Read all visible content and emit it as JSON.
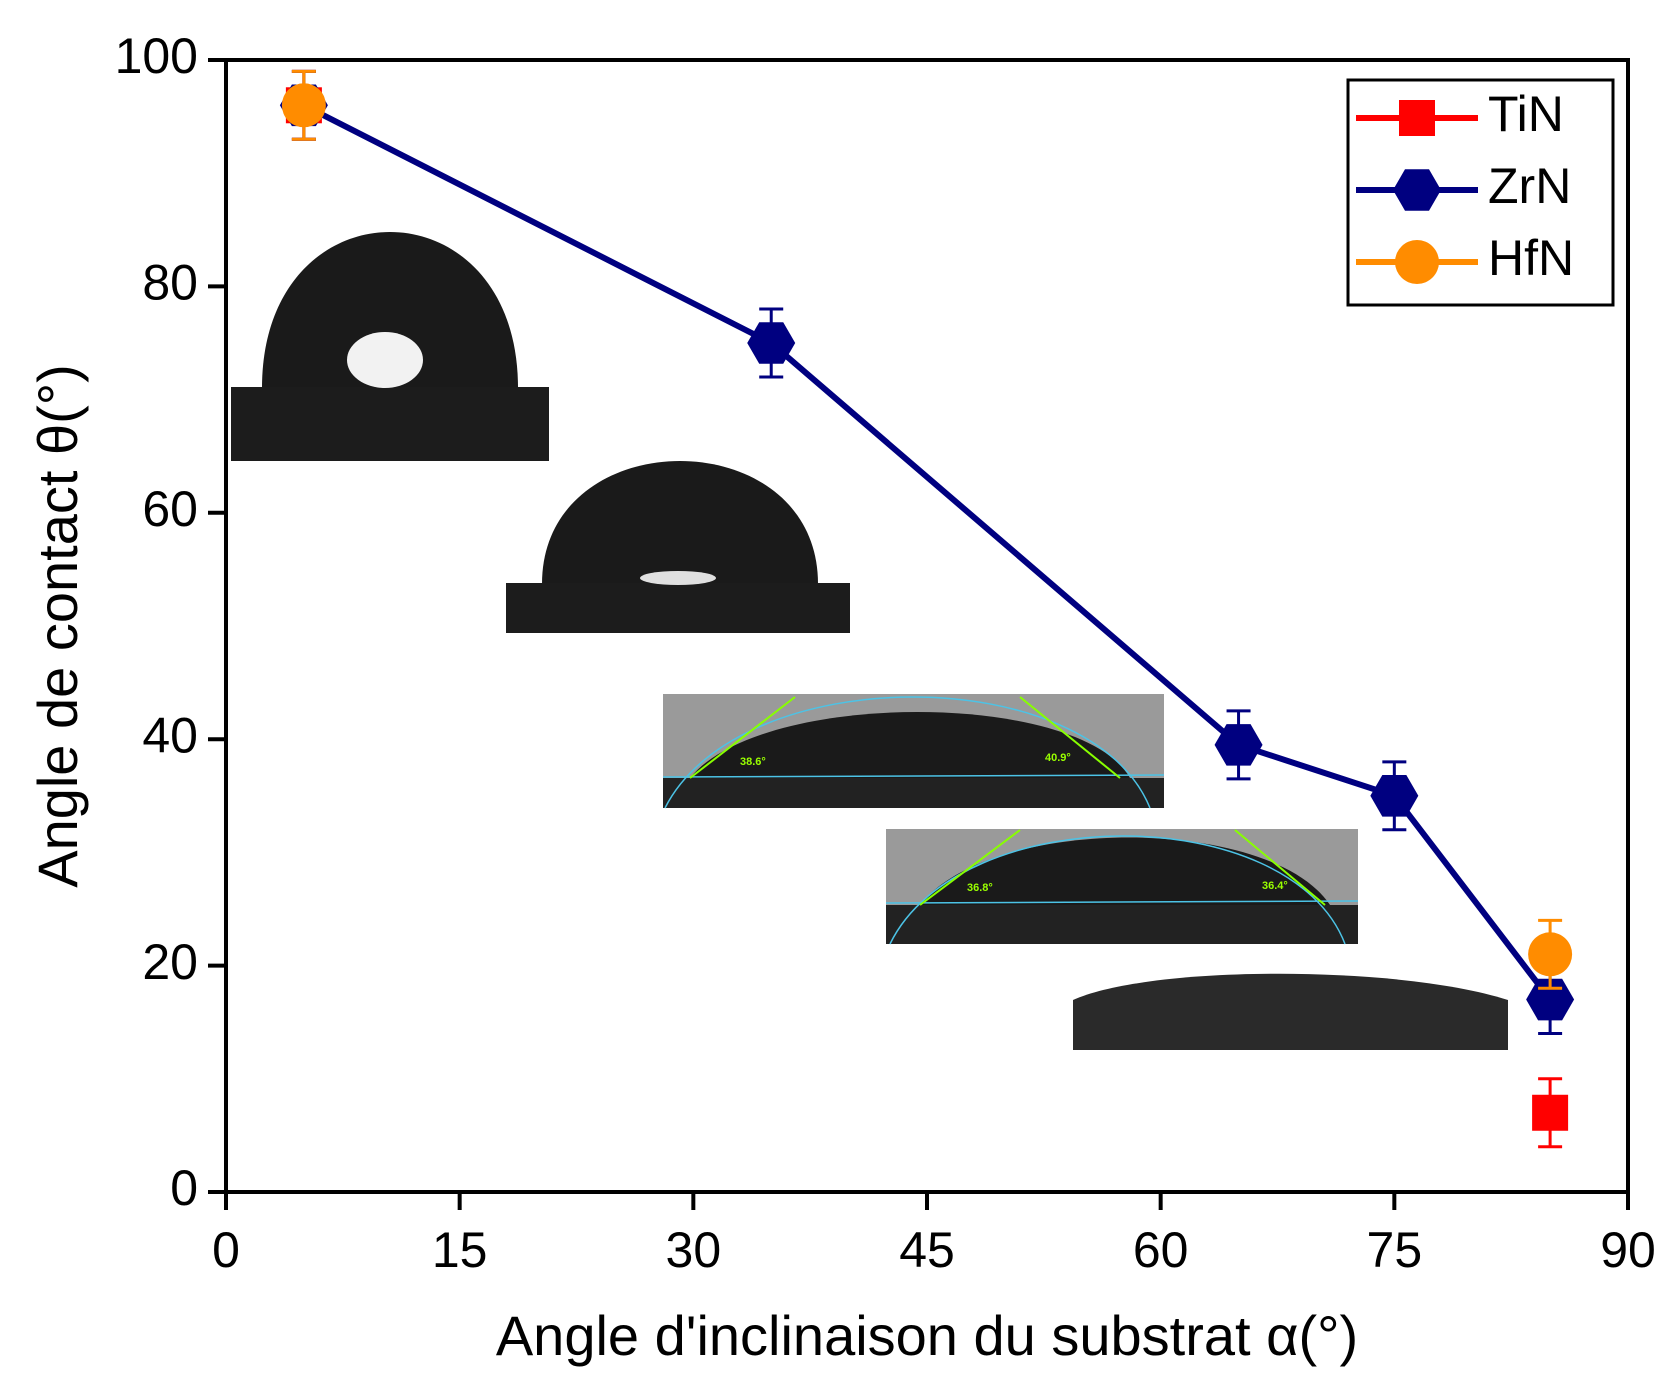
{
  "chart_data": {
    "type": "line",
    "x_label": "Angle d'inclinaison du substrat α(°)",
    "y_label": "Angle de contact θ(°)",
    "x": [
      5,
      35,
      65,
      75,
      85
    ],
    "series": [
      {
        "name": "TiN",
        "color": "#ff0000",
        "marker": "square",
        "values": [
          96,
          null,
          null,
          null,
          7
        ],
        "errors": [
          3,
          null,
          null,
          null,
          3
        ]
      },
      {
        "name": "ZrN",
        "color": "#000080",
        "marker": "hexagon",
        "values": [
          96,
          75,
          39.5,
          35,
          17
        ],
        "errors": [
          3,
          3,
          3,
          3,
          3
        ]
      },
      {
        "name": "HfN",
        "color": "#ff8c00",
        "marker": "circle",
        "values": [
          96,
          null,
          null,
          null,
          21
        ],
        "errors": [
          3,
          null,
          null,
          null,
          3
        ]
      }
    ],
    "xlim": [
      0,
      90
    ],
    "xticks": [
      0,
      15,
      30,
      45,
      60,
      75,
      90
    ],
    "ylim": [
      0,
      100
    ],
    "yticks": [
      0,
      20,
      40,
      60,
      80,
      100
    ],
    "legend": "upper right",
    "inset_labels": [
      "38.6°",
      "40.9°",
      "36.8°",
      "36.4°"
    ]
  }
}
